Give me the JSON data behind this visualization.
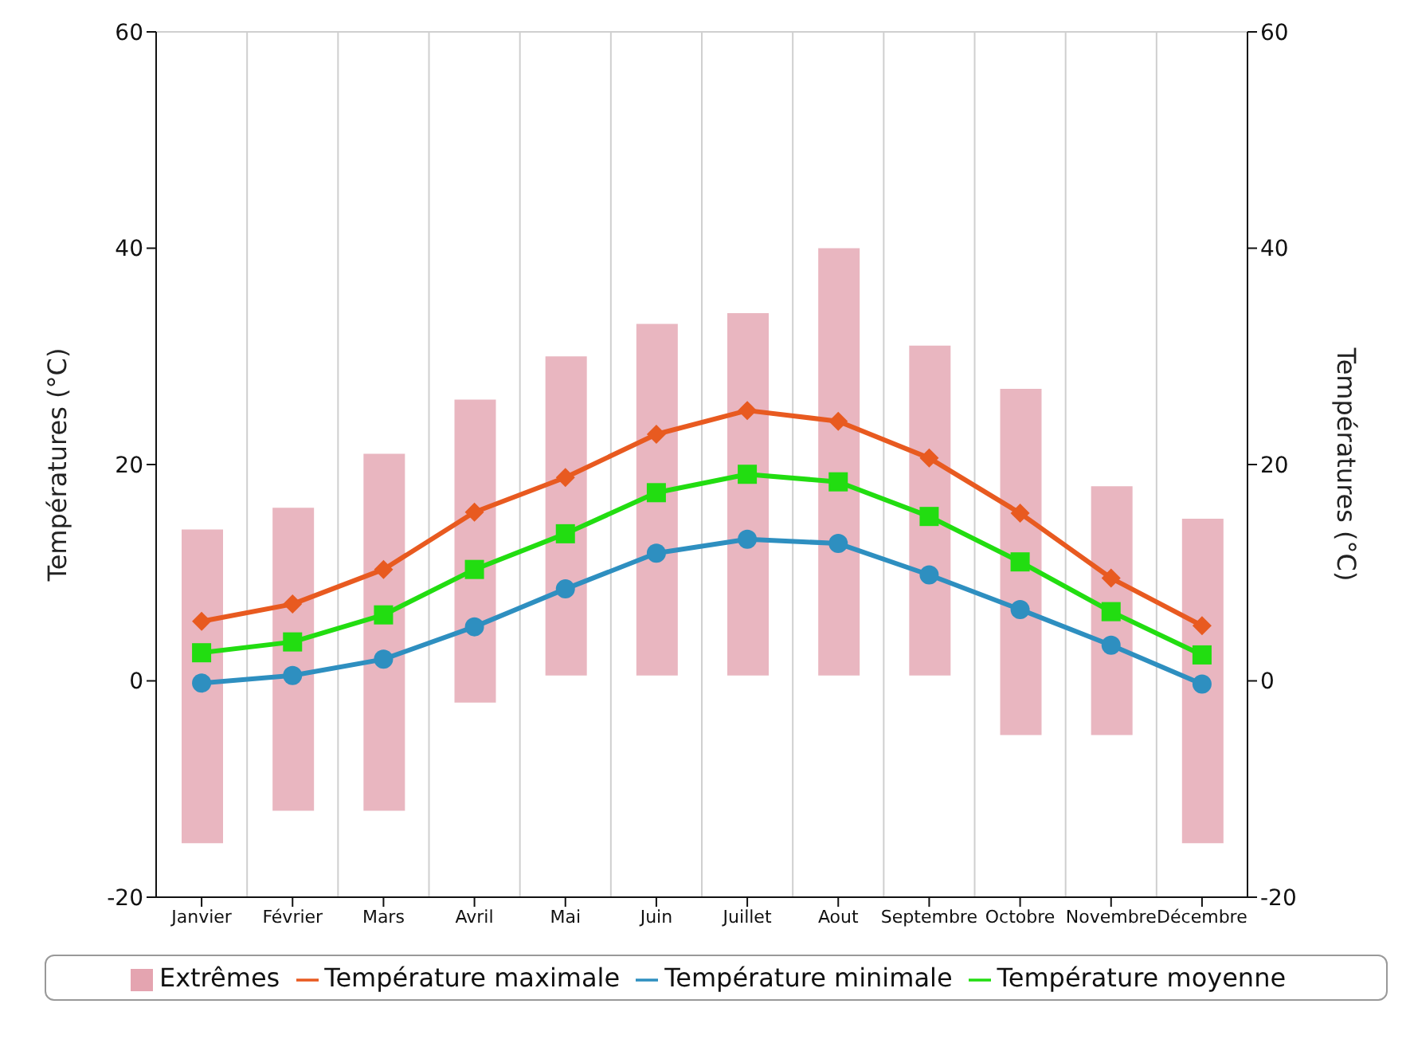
{
  "chart_data": {
    "type": "line",
    "categories": [
      "Janvier",
      "Février",
      "Mars",
      "Avril",
      "Mai",
      "Juin",
      "Juillet",
      "Aout",
      "Septembre",
      "Octobre",
      "Novembre",
      "Décembre"
    ],
    "series": [
      {
        "name": "Extrêmes",
        "type": "bar",
        "color": "#e4a4b0",
        "base": [
          -15,
          -12,
          -12,
          -2,
          0.5,
          0.5,
          0.5,
          0.5,
          0.5,
          -5,
          -5,
          -15
        ],
        "values": [
          29,
          28,
          33,
          28,
          29.5,
          32.5,
          33.5,
          39.5,
          30.5,
          32,
          23,
          30
        ]
      },
      {
        "name": "Température minimale",
        "color": "#2e8fc0",
        "marker": "circle",
        "values": [
          -0.2,
          0.5,
          2,
          5,
          8.5,
          11.8,
          13.1,
          12.7,
          9.8,
          6.6,
          3.3,
          -0.3
        ]
      },
      {
        "name": "Température maximale",
        "color": "#e85a20",
        "marker": "diamond",
        "values": [
          5.5,
          7.1,
          10.3,
          15.6,
          18.8,
          22.8,
          25,
          24,
          20.6,
          15.5,
          9.5,
          5.1
        ]
      },
      {
        "name": "Température moyenne",
        "color": "#22dd11",
        "marker": "square",
        "values": [
          2.6,
          3.6,
          6.1,
          10.3,
          13.6,
          17.4,
          19.1,
          18.4,
          15.2,
          11,
          6.4,
          2.4
        ]
      }
    ],
    "ylabel": "Températures (°C)",
    "y2label": "Températures (°C)",
    "ylim": [
      -20,
      60
    ],
    "yticks": [
      -20,
      0,
      20,
      40,
      60
    ],
    "y2lim": [
      -20,
      60
    ],
    "y2ticks": [
      -20,
      0,
      20,
      40,
      60
    ],
    "grid": true,
    "legend": "bottom"
  }
}
